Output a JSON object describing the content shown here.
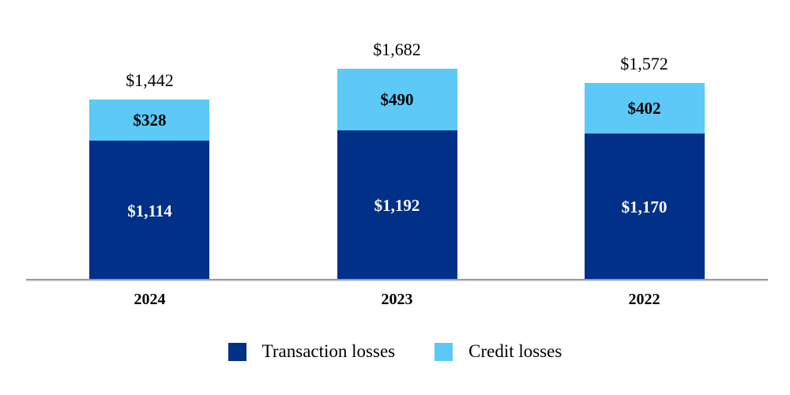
{
  "chart_data": {
    "type": "bar",
    "stacked": true,
    "title": "",
    "xlabel": "",
    "ylabel": "",
    "categories": [
      "2024",
      "2023",
      "2022"
    ],
    "series": [
      {
        "name": "Transaction losses",
        "values": [
          1114,
          1192,
          1170
        ],
        "data_labels": [
          "$1,114",
          "$1,192",
          "$1,170"
        ],
        "color": "#003087",
        "label_color": "#ffffff"
      },
      {
        "name": "Credit losses",
        "values": [
          328,
          490,
          402
        ],
        "data_labels": [
          "$328",
          "$490",
          "$402"
        ],
        "color": "#5cc9f6",
        "label_color": "#000000"
      }
    ],
    "totals": [
      1442,
      1682,
      1572
    ],
    "total_labels": [
      "$1,442",
      "$1,682",
      "$1,572"
    ],
    "legend": {
      "position": "bottom",
      "items": [
        {
          "label": "Transaction losses",
          "color": "#003087"
        },
        {
          "label": "Credit losses",
          "color": "#5cc9f6"
        }
      ]
    },
    "axes": {
      "x_tick_labels": [
        "2024",
        "2023",
        "2022"
      ],
      "y_axis_visible": false,
      "gridlines": false,
      "baseline_color": "#8f8f8f"
    }
  }
}
